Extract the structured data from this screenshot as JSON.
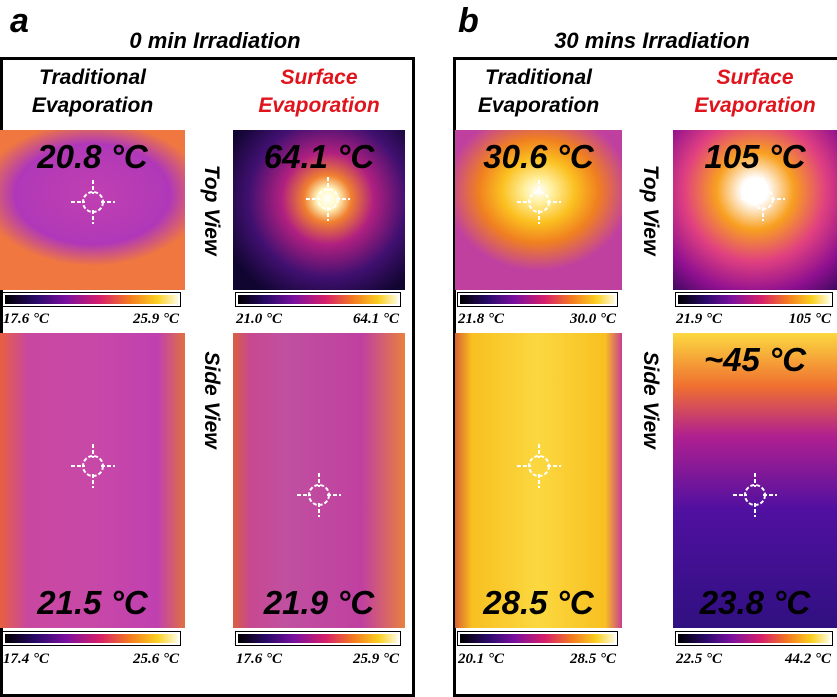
{
  "panels": [
    {
      "letter": "a",
      "title": "0 min Irradiation",
      "columns": [
        "Traditional Evaporation",
        "Surface Evaporation"
      ],
      "views": [
        "Top View",
        "Side View"
      ],
      "images": [
        [
          {
            "temps": [
              "20.8 °C"
            ],
            "min": "17.6 °C",
            "max": "25.9 °C"
          },
          {
            "temps": [
              "64.1 °C"
            ],
            "min": "21.0 °C",
            "max": "64.1 °C"
          }
        ],
        [
          {
            "temps": [
              "21.5 °C"
            ],
            "min": "17.4 °C",
            "max": "25.6 °C"
          },
          {
            "temps": [
              "21.9 °C"
            ],
            "min": "17.6 °C",
            "max": "25.9 °C"
          }
        ]
      ]
    },
    {
      "letter": "b",
      "title": "30 mins Irradiation",
      "columns": [
        "Traditional Evaporation",
        "Surface Evaporation"
      ],
      "views": [
        "Top View",
        "Side View"
      ],
      "images": [
        [
          {
            "temps": [
              "30.6 °C"
            ],
            "min": "21.8 °C",
            "max": "30.0 °C"
          },
          {
            "temps": [
              "105 °C"
            ],
            "min": "21.9 °C",
            "max": "105 °C"
          }
        ],
        [
          {
            "temps": [
              "28.5 °C"
            ],
            "min": "20.1 °C",
            "max": "28.5 °C"
          },
          {
            "temps": [
              "~45 °C",
              "23.8 °C"
            ],
            "min": "22.5 °C",
            "max": "44.2 °C"
          }
        ]
      ]
    }
  ]
}
